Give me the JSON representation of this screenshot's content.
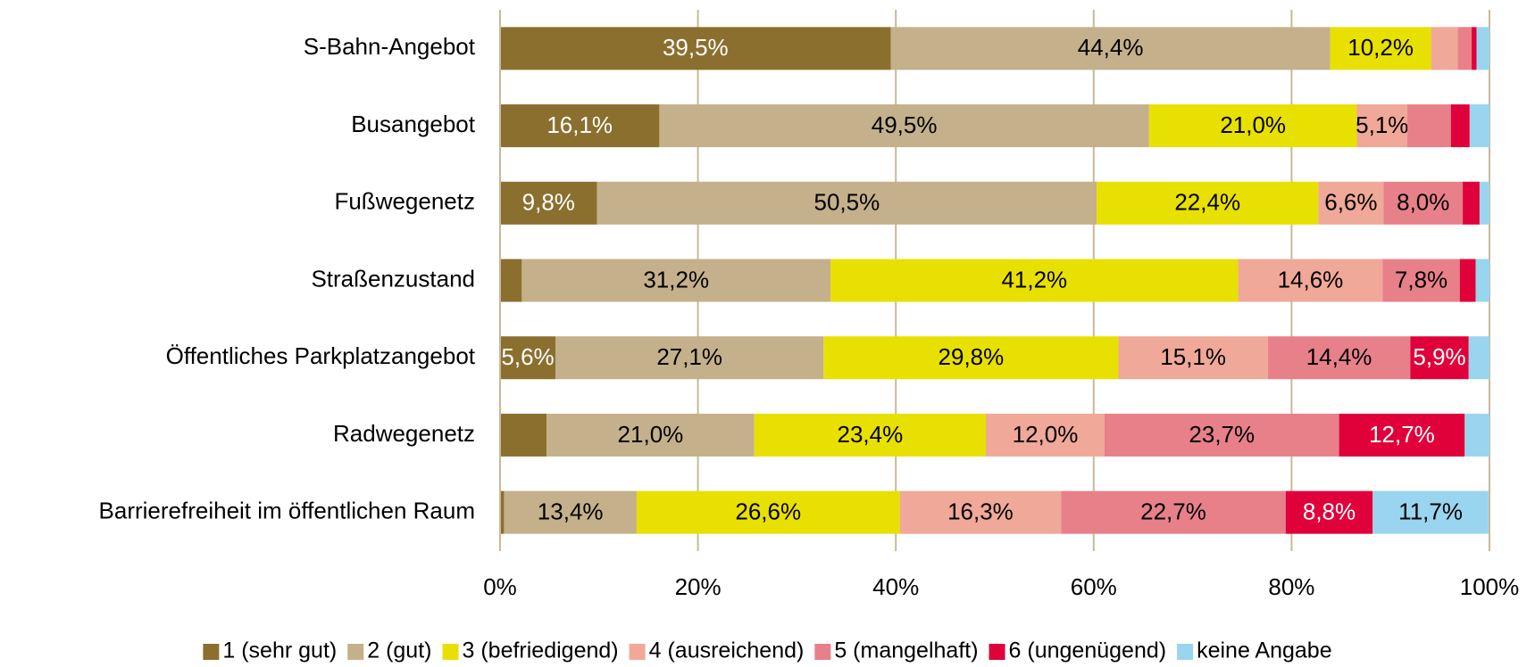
{
  "chart_data": {
    "type": "stacked-bar-horizontal",
    "categories": [
      "S-Bahn-Angebot",
      "Busangebot",
      "Fußwegenetz",
      "Straßenzustand",
      "Öffentliches Parkplatzangebot",
      "Radwegenetz",
      "Barrierefreiheit im öffentlichen Raum"
    ],
    "series": [
      {
        "name": "1 (sehr gut)",
        "color": "#8b6f2e",
        "label_color": "#ffffff",
        "values": [
          39.5,
          16.1,
          9.8,
          2.2,
          5.6,
          4.7,
          0.4
        ],
        "value_labels": [
          "39,5%",
          "16,1%",
          "9,8%",
          null,
          "5,6%",
          null,
          null
        ]
      },
      {
        "name": "2 (gut)",
        "color": "#c4b08a",
        "label_color": "#000000",
        "values": [
          44.4,
          49.5,
          50.5,
          31.2,
          27.1,
          21.0,
          13.4
        ],
        "value_labels": [
          "44,4%",
          "49,5%",
          "50,5%",
          "31,2%",
          "27,1%",
          "21,0%",
          "13,4%"
        ]
      },
      {
        "name": "3 (befriedigend)",
        "color": "#e8e000",
        "label_color": "#000000",
        "values": [
          10.2,
          21.0,
          22.4,
          41.2,
          29.8,
          23.4,
          26.6
        ],
        "value_labels": [
          "10,2%",
          "21,0%",
          "22,4%",
          "41,2%",
          "29,8%",
          "23,4%",
          "26,6%"
        ]
      },
      {
        "name": "4 (ausreichend)",
        "color": "#f0a898",
        "label_color": "#000000",
        "values": [
          2.7,
          5.1,
          6.6,
          14.6,
          15.1,
          12.0,
          16.3
        ],
        "value_labels": [
          null,
          "5,1%",
          "6,6%",
          "14,6%",
          "15,1%",
          "12,0%",
          "16,3%"
        ]
      },
      {
        "name": "5 (mangelhaft)",
        "color": "#e8808a",
        "label_color": "#000000",
        "values": [
          1.4,
          4.4,
          8.0,
          7.8,
          14.4,
          23.7,
          22.7
        ],
        "value_labels": [
          null,
          null,
          "8,0%",
          "7,8%",
          "14,4%",
          "23,7%",
          "22,7%"
        ]
      },
      {
        "name": "6 (ungenügend)",
        "color": "#e0003a",
        "label_color": "#ffffff",
        "values": [
          0.5,
          1.9,
          1.7,
          1.6,
          5.9,
          12.7,
          8.8
        ],
        "value_labels": [
          null,
          null,
          null,
          null,
          "5,9%",
          "12,7%",
          "8,8%"
        ]
      },
      {
        "name": "keine Angabe",
        "color": "#99d5ee",
        "label_color": "#000000",
        "values": [
          1.3,
          2.0,
          1.0,
          1.4,
          2.1,
          2.5,
          11.7
        ],
        "value_labels": [
          null,
          null,
          null,
          null,
          null,
          null,
          "11,7%"
        ]
      }
    ],
    "xlim": [
      0,
      100
    ],
    "xticks": [
      {
        "value": 0,
        "label": "0%"
      },
      {
        "value": 20,
        "label": "20%"
      },
      {
        "value": 40,
        "label": "40%"
      },
      {
        "value": 60,
        "label": "60%"
      },
      {
        "value": 80,
        "label": "80%"
      },
      {
        "value": 100,
        "label": "100%"
      }
    ],
    "grid": true,
    "grid_color": "#c8b99a",
    "legend": "bottom"
  }
}
